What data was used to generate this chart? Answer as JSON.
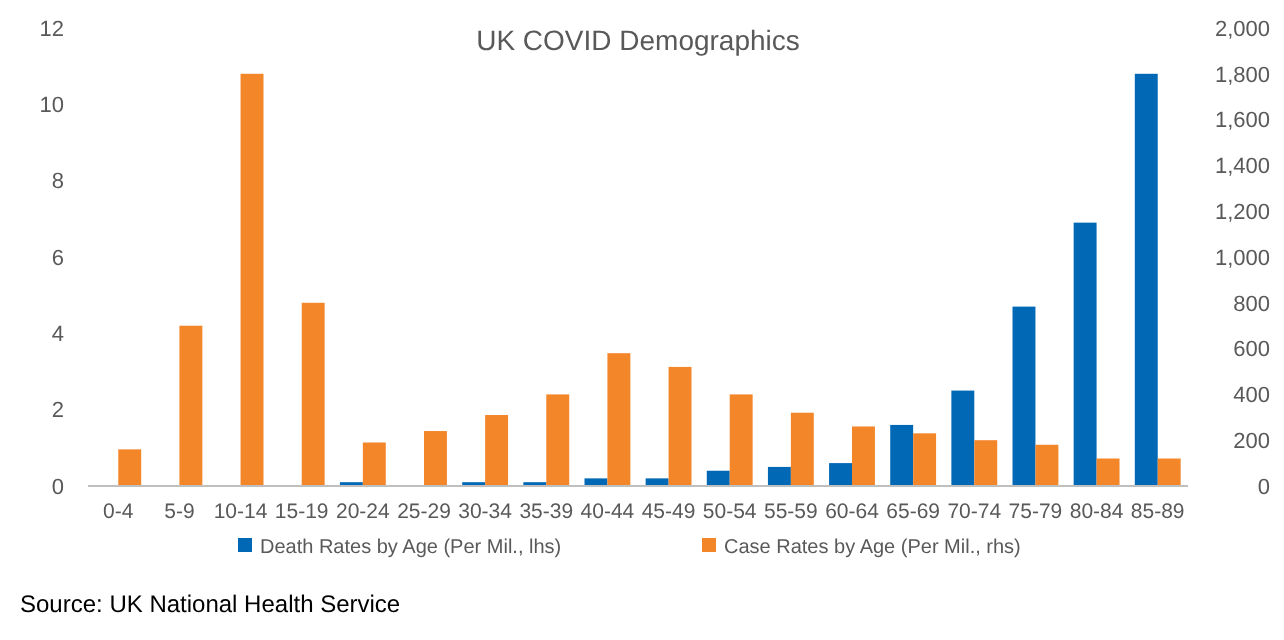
{
  "chart_data": {
    "type": "bar",
    "title": "UK COVID Demographics",
    "categories": [
      "0-4",
      "5-9",
      "10-14",
      "15-19",
      "20-24",
      "25-29",
      "30-34",
      "35-39",
      "40-44",
      "45-49",
      "50-54",
      "55-59",
      "60-64",
      "65-69",
      "70-74",
      "75-79",
      "80-84",
      "85-89"
    ],
    "series": [
      {
        "name": "Death Rates by Age (Per Mil., lhs)",
        "color": "#0068b5",
        "values": [
          0,
          0,
          0,
          0,
          0.1,
          0,
          0.1,
          0.1,
          0.2,
          0.2,
          0.4,
          0.5,
          0.6,
          1.6,
          2.5,
          4.7,
          6.9,
          10.8
        ]
      },
      {
        "name": "Case Rates by Age (Per Mil., rhs)",
        "color": "#f4862a",
        "axis": "y2",
        "values": [
          160,
          700,
          1800,
          800,
          190,
          240,
          310,
          400,
          580,
          520,
          400,
          320,
          260,
          230,
          200,
          180,
          120,
          120
        ]
      }
    ],
    "ylim": [
      0,
      12
    ],
    "yticks": [
      0,
      2,
      4,
      6,
      8,
      10,
      12
    ],
    "y2lim": [
      0,
      2000
    ],
    "y2ticks": [
      0,
      {
        "value": 200,
        "label": "200"
      },
      {
        "value": 400,
        "label": "400"
      },
      {
        "value": 600,
        "label": "600"
      },
      {
        "value": 800,
        "label": "800"
      },
      {
        "value": 1000,
        "label": "1,000"
      },
      {
        "value": 1200,
        "label": "1,200"
      },
      {
        "value": 1400,
        "label": "1,400"
      },
      {
        "value": 1600,
        "label": "1,600"
      },
      {
        "value": 1800,
        "label": "1,800"
      },
      {
        "value": 2000,
        "label": "2,000"
      }
    ],
    "grid": false,
    "legend": "bottom",
    "annotations": [
      "Source: UK National Health Service"
    ]
  }
}
